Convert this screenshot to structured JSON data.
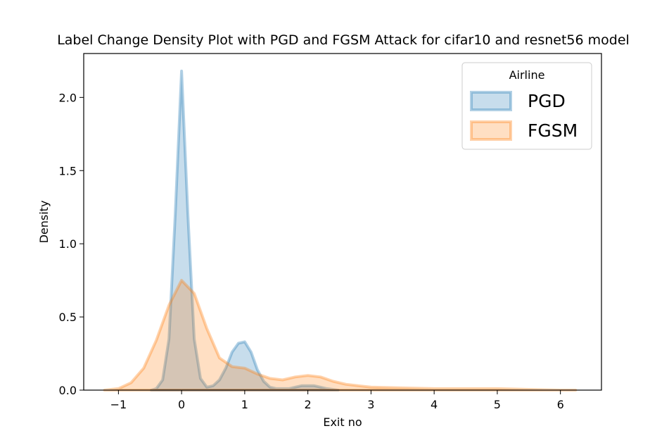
{
  "chart_data": {
    "type": "area",
    "title": "Label Change Density Plot with PGD and FGSM Attack for cifar10 and  resnet56 model",
    "xlabel": "Exit no",
    "ylabel": "Density",
    "xlim": [
      -1.55,
      6.65
    ],
    "ylim": [
      0,
      2.3
    ],
    "x_ticks": [
      -1,
      0,
      1,
      2,
      3,
      4,
      5,
      6
    ],
    "x_tick_labels": [
      "−1",
      "0",
      "1",
      "2",
      "3",
      "4",
      "5",
      "6"
    ],
    "y_ticks": [
      0.0,
      0.5,
      1.0,
      1.5,
      2.0
    ],
    "y_tick_labels": [
      "0.0",
      "0.5",
      "1.0",
      "1.5",
      "2.0"
    ],
    "grid": false,
    "legend": {
      "title": "Airline",
      "position": "top-right"
    },
    "series": [
      {
        "name": "PGD",
        "color": "#1f77b4",
        "x": [
          -0.48,
          -0.4,
          -0.3,
          -0.2,
          -0.1,
          0.0,
          0.1,
          0.2,
          0.3,
          0.4,
          0.5,
          0.6,
          0.7,
          0.8,
          0.9,
          1.0,
          1.1,
          1.2,
          1.3,
          1.4,
          1.5,
          1.6,
          1.7,
          1.8,
          1.9,
          2.0,
          2.1,
          2.2,
          2.3,
          2.48
        ],
        "values": [
          0.0,
          0.01,
          0.07,
          0.35,
          1.2,
          2.18,
          1.2,
          0.35,
          0.08,
          0.02,
          0.03,
          0.07,
          0.15,
          0.26,
          0.32,
          0.33,
          0.26,
          0.14,
          0.06,
          0.02,
          0.01,
          0.01,
          0.01,
          0.02,
          0.03,
          0.03,
          0.03,
          0.02,
          0.01,
          0.0
        ]
      },
      {
        "name": "FGSM",
        "color": "#ff7f0e",
        "x": [
          -1.22,
          -1.0,
          -0.8,
          -0.6,
          -0.4,
          -0.2,
          0.0,
          0.2,
          0.4,
          0.6,
          0.8,
          1.0,
          1.2,
          1.4,
          1.6,
          1.8,
          2.0,
          2.2,
          2.4,
          2.6,
          2.8,
          3.0,
          3.5,
          4.0,
          4.5,
          5.0,
          5.5,
          6.0,
          6.24
        ],
        "values": [
          0.0,
          0.01,
          0.05,
          0.15,
          0.34,
          0.58,
          0.75,
          0.66,
          0.42,
          0.22,
          0.16,
          0.15,
          0.11,
          0.08,
          0.07,
          0.09,
          0.1,
          0.09,
          0.06,
          0.04,
          0.03,
          0.02,
          0.015,
          0.01,
          0.01,
          0.01,
          0.005,
          0.0,
          0.0
        ]
      }
    ]
  }
}
